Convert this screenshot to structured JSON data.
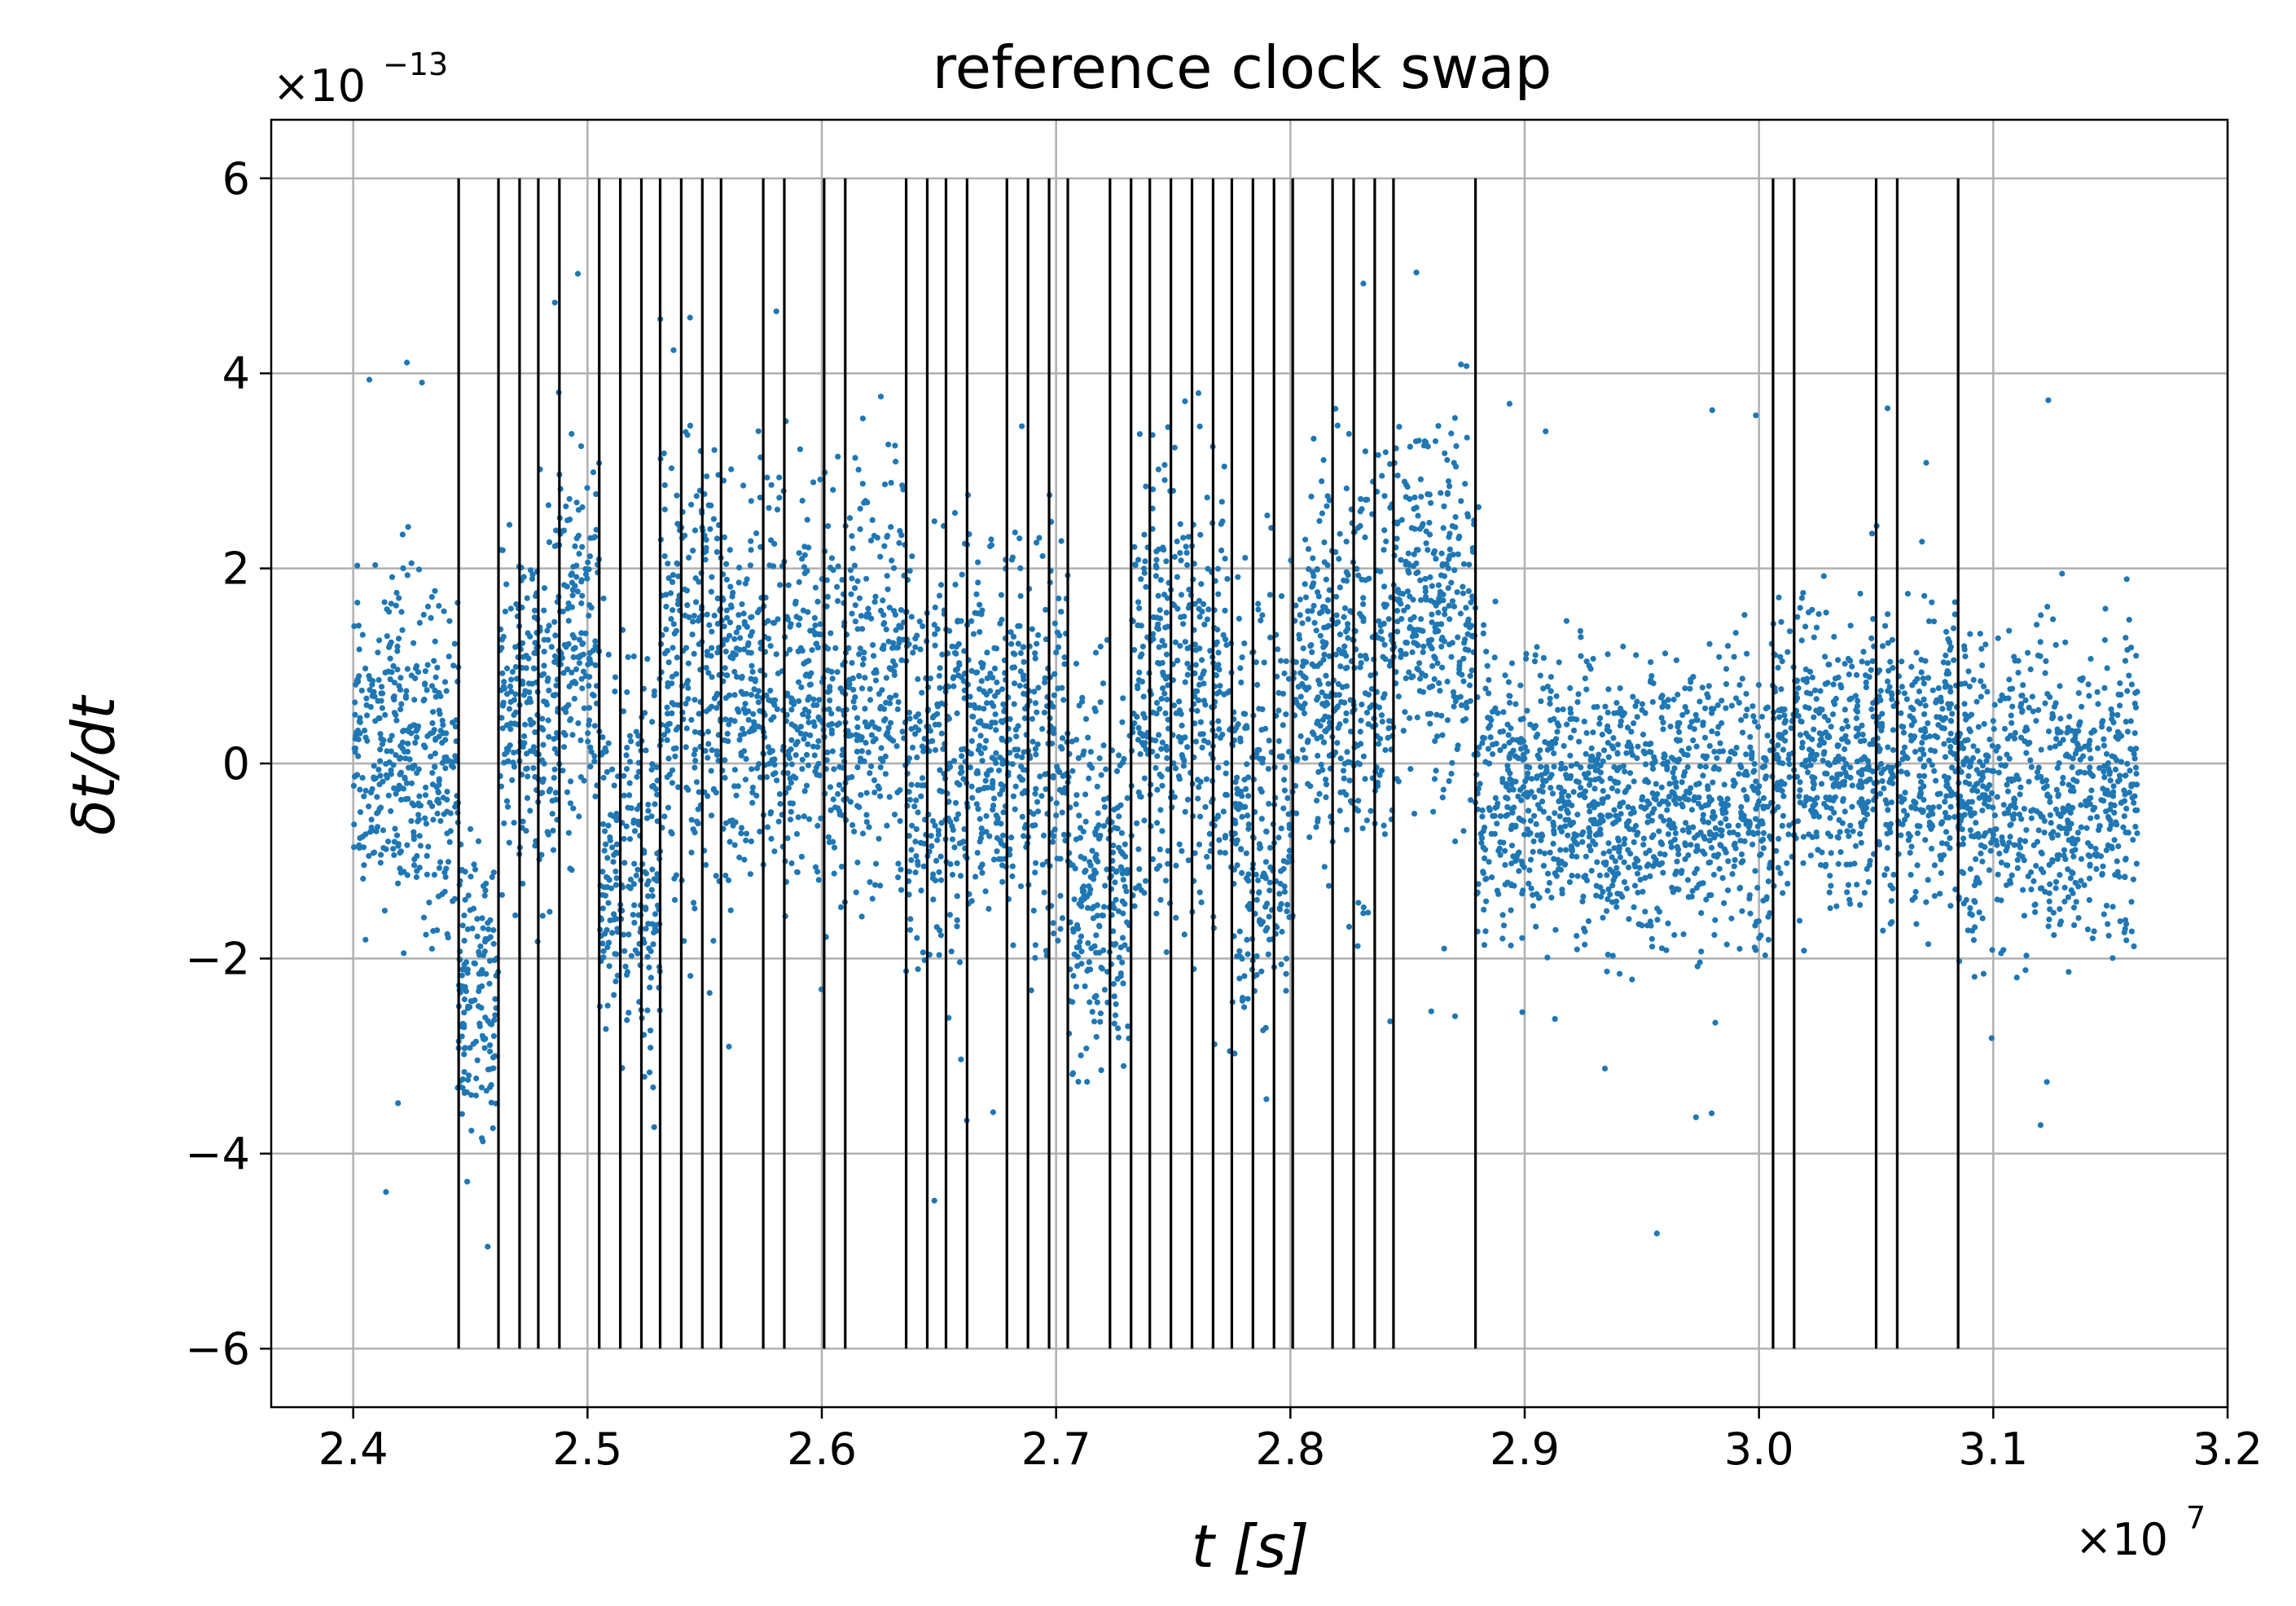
{
  "chart_data": {
    "type": "scatter",
    "title": "reference clock swap",
    "xlabel": "t [s]",
    "ylabel": "δt/dt",
    "x_multiplier": "×10",
    "x_multiplier_exp": "7",
    "y_multiplier": "×10",
    "y_multiplier_exp": "−13",
    "xlim": [
      2.365,
      3.2
    ],
    "ylim": [
      -6.6,
      6.6
    ],
    "grid": true,
    "x_ticks": [
      2.4,
      2.5,
      2.6,
      2.7,
      2.8,
      2.9,
      3.0,
      3.1,
      3.2
    ],
    "x_tick_labels": [
      "2.4",
      "2.5",
      "2.6",
      "2.7",
      "2.8",
      "2.9",
      "3.0",
      "3.1",
      "3.2"
    ],
    "y_ticks": [
      -6,
      -4,
      -2,
      0,
      2,
      4,
      6
    ],
    "y_tick_labels": [
      "−6",
      "−4",
      "−2",
      "0",
      "2",
      "4",
      "6"
    ],
    "scatter_color": "#1f77b4",
    "vline_color": "#000000",
    "vlines": {
      "x": [
        2.445,
        2.462,
        2.471,
        2.479,
        2.488,
        2.505,
        2.514,
        2.523,
        2.531,
        2.54,
        2.549,
        2.557,
        2.575,
        2.584,
        2.601,
        2.61,
        2.636,
        2.645,
        2.653,
        2.662,
        2.679,
        2.688,
        2.697,
        2.705,
        2.723,
        2.732,
        2.74,
        2.749,
        2.758,
        2.767,
        2.775,
        2.784,
        2.793,
        2.801,
        2.818,
        2.827,
        2.836,
        2.844,
        2.879,
        3.006,
        3.015,
        3.05,
        3.059,
        3.085
      ],
      "ymin": -6,
      "ymax": 6
    },
    "segments": [
      {
        "x": [
          2.4,
          2.445
        ],
        "y_center": 0.1,
        "spread": 0.85
      },
      {
        "x": [
          2.445,
          2.462
        ],
        "y_center": -2.3,
        "spread": 0.8
      },
      {
        "x": [
          2.462,
          2.488
        ],
        "y_center": 0.6,
        "spread": 0.95
      },
      {
        "x": [
          2.488,
          2.505
        ],
        "y_center": 1.3,
        "spread": 0.9
      },
      {
        "x": [
          2.505,
          2.531
        ],
        "y_center": -0.9,
        "spread": 1.0
      },
      {
        "x": [
          2.531,
          2.557
        ],
        "y_center": 0.9,
        "spread": 1.2
      },
      {
        "x": [
          2.557,
          2.584
        ],
        "y_center": 0.8,
        "spread": 1.0
      },
      {
        "x": [
          2.584,
          2.61
        ],
        "y_center": 0.5,
        "spread": 1.0
      },
      {
        "x": [
          2.61,
          2.636
        ],
        "y_center": 1.0,
        "spread": 0.95
      },
      {
        "x": [
          2.636,
          2.662
        ],
        "y_center": 0.0,
        "spread": 1.1
      },
      {
        "x": [
          2.662,
          2.705
        ],
        "y_center": 0.3,
        "spread": 1.0
      },
      {
        "x": [
          2.705,
          2.732
        ],
        "y_center": -1.2,
        "spread": 0.9
      },
      {
        "x": [
          2.732,
          2.775
        ],
        "y_center": 0.6,
        "spread": 1.1
      },
      {
        "x": [
          2.775,
          2.801
        ],
        "y_center": -0.6,
        "spread": 1.0
      },
      {
        "x": [
          2.801,
          2.844
        ],
        "y_center": 0.9,
        "spread": 1.0
      },
      {
        "x": [
          2.844,
          2.879
        ],
        "y_center": 1.6,
        "spread": 0.85
      },
      {
        "x": [
          2.879,
          3.006
        ],
        "y_center": -0.4,
        "spread": 0.7
      },
      {
        "x": [
          3.006,
          3.085
        ],
        "y_center": 0.1,
        "spread": 0.75
      },
      {
        "x": [
          3.085,
          3.162
        ],
        "y_center": -0.3,
        "spread": 0.75
      }
    ]
  }
}
